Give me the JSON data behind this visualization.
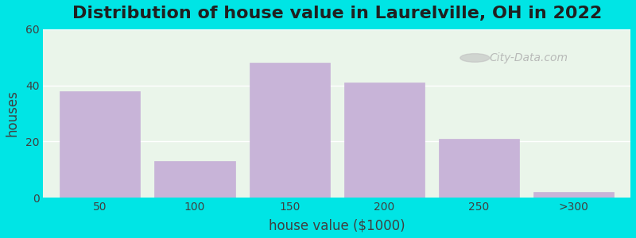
{
  "title": "Distribution of house value in Laurelville, OH in 2022",
  "xlabel": "house value ($1000)",
  "ylabel": "houses",
  "categories": [
    "50",
    "100",
    "150",
    "200",
    "250",
    ">300"
  ],
  "values": [
    38,
    13,
    48,
    41,
    21,
    2
  ],
  "bar_color": "#c8b4d8",
  "bar_edgecolor": "#c8b4d8",
  "background_color": "#00e5e5",
  "plot_bg_color": "#eaf5ea",
  "ylim": [
    0,
    60
  ],
  "yticks": [
    0,
    20,
    40,
    60
  ],
  "title_fontsize": 16,
  "axis_label_fontsize": 12,
  "tick_fontsize": 10,
  "bar_width": 0.85
}
